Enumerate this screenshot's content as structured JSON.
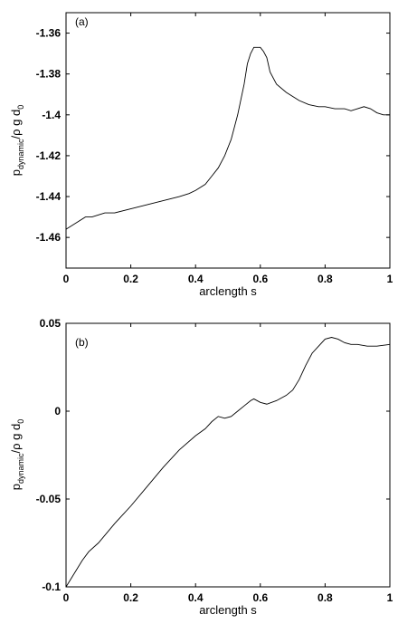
{
  "chart_data": [
    {
      "type": "line",
      "panel_label": "(a)",
      "xlabel": "arclength s",
      "ylabel": {
        "base": "p",
        "sub1": "dynamic",
        "mid": "/ρ g d",
        "sub2": "0"
      },
      "xlim": [
        0,
        1
      ],
      "ylim": [
        -1.475,
        -1.35
      ],
      "xticks": [
        "0",
        "0.2",
        "0.4",
        "0.6",
        "0.8",
        "1"
      ],
      "xtick_values": [
        0,
        0.2,
        0.4,
        0.6,
        0.8,
        1
      ],
      "yticks": [
        "-1.36",
        "-1.38",
        "-1.4",
        "-1.42",
        "-1.44",
        "-1.46"
      ],
      "ytick_values": [
        -1.36,
        -1.38,
        -1.4,
        -1.42,
        -1.44,
        -1.46
      ],
      "grid": false,
      "series": [
        {
          "x": [
            0,
            0.03,
            0.06,
            0.08,
            0.1,
            0.12,
            0.15,
            0.2,
            0.25,
            0.3,
            0.35,
            0.38,
            0.4,
            0.43,
            0.45,
            0.47,
            0.49,
            0.51,
            0.53,
            0.55,
            0.56,
            0.57,
            0.58,
            0.6,
            0.61,
            0.62,
            0.63,
            0.65,
            0.68,
            0.72,
            0.75,
            0.78,
            0.8,
            0.83,
            0.86,
            0.88,
            0.9,
            0.92,
            0.94,
            0.96,
            0.98,
            1.0
          ],
          "y": [
            -1.456,
            -1.453,
            -1.45,
            -1.45,
            -1.449,
            -1.448,
            -1.448,
            -1.446,
            -1.444,
            -1.442,
            -1.44,
            -1.4385,
            -1.437,
            -1.434,
            -1.43,
            -1.426,
            -1.42,
            -1.412,
            -1.4,
            -1.385,
            -1.375,
            -1.37,
            -1.367,
            -1.367,
            -1.369,
            -1.372,
            -1.379,
            -1.385,
            -1.389,
            -1.393,
            -1.395,
            -1.396,
            -1.396,
            -1.397,
            -1.397,
            -1.398,
            -1.397,
            -1.396,
            -1.397,
            -1.399,
            -1.4,
            -1.4
          ]
        }
      ]
    },
    {
      "type": "line",
      "panel_label": "(b)",
      "xlabel": "arclength s",
      "ylabel": {
        "base": "p",
        "sub1": "dynamic",
        "mid": "/ρ g d",
        "sub2": "0"
      },
      "xlim": [
        0,
        1
      ],
      "ylim": [
        -0.1,
        0.05
      ],
      "xticks": [
        "0",
        "0.2",
        "0.4",
        "0.6",
        "0.8",
        "1"
      ],
      "xtick_values": [
        0,
        0.2,
        0.4,
        0.6,
        0.8,
        1
      ],
      "yticks": [
        "0.05",
        "0",
        "-0.05",
        "-0.1"
      ],
      "ytick_values": [
        0.05,
        0,
        -0.05,
        -0.1
      ],
      "grid": false,
      "series": [
        {
          "x": [
            0,
            0.02,
            0.05,
            0.07,
            0.1,
            0.15,
            0.2,
            0.25,
            0.3,
            0.35,
            0.4,
            0.43,
            0.45,
            0.47,
            0.49,
            0.51,
            0.53,
            0.55,
            0.57,
            0.58,
            0.6,
            0.62,
            0.65,
            0.68,
            0.7,
            0.72,
            0.74,
            0.76,
            0.78,
            0.8,
            0.82,
            0.84,
            0.86,
            0.88,
            0.9,
            0.93,
            0.96,
            1.0
          ],
          "y": [
            -0.1,
            -0.094,
            -0.085,
            -0.08,
            -0.075,
            -0.064,
            -0.054,
            -0.043,
            -0.032,
            -0.022,
            -0.014,
            -0.01,
            -0.006,
            -0.003,
            -0.004,
            -0.003,
            0.0,
            0.003,
            0.006,
            0.007,
            0.005,
            0.004,
            0.006,
            0.009,
            0.012,
            0.018,
            0.026,
            0.033,
            0.037,
            0.041,
            0.042,
            0.041,
            0.039,
            0.038,
            0.038,
            0.037,
            0.037,
            0.038
          ]
        }
      ]
    }
  ]
}
